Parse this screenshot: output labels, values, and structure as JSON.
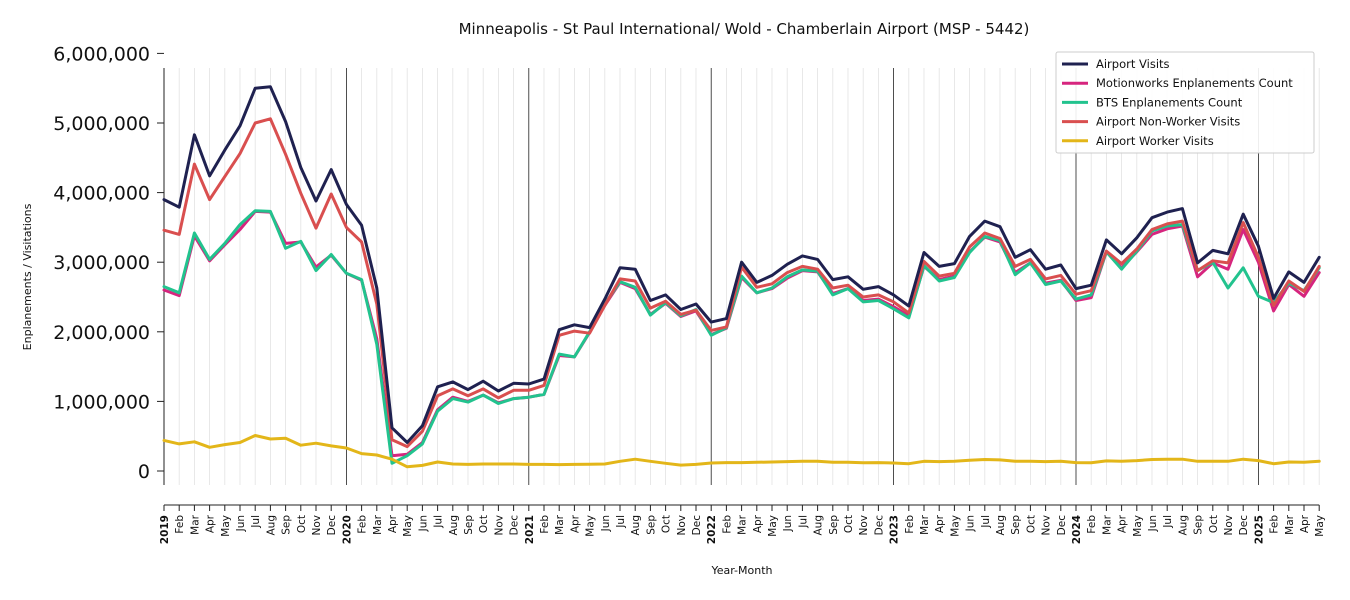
{
  "chart_data": {
    "type": "line",
    "title": "Minneapolis - St Paul International/ Wold - Chamberlain Airport (MSP - 5442)",
    "xlabel": "Year-Month",
    "ylabel": "Enplanements / Visitations",
    "ylim": [
      -200000,
      6000000
    ],
    "yticks": [
      0,
      1000000,
      2000000,
      3000000,
      4000000,
      5000000,
      6000000
    ],
    "ytick_labels": [
      "0",
      "1,000,000",
      "2,000,000",
      "3,000,000",
      "4,000,000",
      "5,000,000",
      "6,000,000"
    ],
    "grid": "vertical monthly gridlines, darker lines at each January",
    "legend_position": "top-right",
    "x": [
      "2019-01",
      "2019-02",
      "2019-03",
      "2019-04",
      "2019-05",
      "2019-06",
      "2019-07",
      "2019-08",
      "2019-09",
      "2019-10",
      "2019-11",
      "2019-12",
      "2020-01",
      "2020-02",
      "2020-03",
      "2020-04",
      "2020-05",
      "2020-06",
      "2020-07",
      "2020-08",
      "2020-09",
      "2020-10",
      "2020-11",
      "2020-12",
      "2021-01",
      "2021-02",
      "2021-03",
      "2021-04",
      "2021-05",
      "2021-06",
      "2021-07",
      "2021-08",
      "2021-09",
      "2021-10",
      "2021-11",
      "2021-12",
      "2022-01",
      "2022-02",
      "2022-03",
      "2022-04",
      "2022-05",
      "2022-06",
      "2022-07",
      "2022-08",
      "2022-09",
      "2022-10",
      "2022-11",
      "2022-12",
      "2023-01",
      "2023-02",
      "2023-03",
      "2023-04",
      "2023-05",
      "2023-06",
      "2023-07",
      "2023-08",
      "2023-09",
      "2023-10",
      "2023-11",
      "2023-12",
      "2024-01",
      "2024-02",
      "2024-03",
      "2024-04",
      "2024-05",
      "2024-06",
      "2024-07",
      "2024-08",
      "2024-09",
      "2024-10",
      "2024-11",
      "2024-12",
      "2025-01",
      "2025-02",
      "2025-03",
      "2025-04",
      "2025-05"
    ],
    "xtick_labels": [
      "2019",
      "Feb",
      "Mar",
      "Apr",
      "May",
      "Jun",
      "Jul",
      "Aug",
      "Sep",
      "Oct",
      "Nov",
      "Dec",
      "2020",
      "Feb",
      "Mar",
      "Apr",
      "May",
      "Jun",
      "Jul",
      "Aug",
      "Sep",
      "Oct",
      "Nov",
      "Dec",
      "2021",
      "Feb",
      "Mar",
      "Apr",
      "May",
      "Jun",
      "Jul",
      "Aug",
      "Sep",
      "Oct",
      "Nov",
      "Dec",
      "2022",
      "Feb",
      "Mar",
      "Apr",
      "May",
      "Jun",
      "Jul",
      "Aug",
      "Sep",
      "Oct",
      "Nov",
      "Dec",
      "2023",
      "Feb",
      "Mar",
      "Apr",
      "May",
      "Jun",
      "Jul",
      "Aug",
      "Sep",
      "Oct",
      "Nov",
      "Dec",
      "2024",
      "Feb",
      "Mar",
      "Apr",
      "May",
      "Jun",
      "Jul",
      "Aug",
      "Sep",
      "Oct",
      "Nov",
      "Dec",
      "2025",
      "Feb",
      "Mar",
      "Apr",
      "May"
    ],
    "series": [
      {
        "name": "Motionworks Enplanements Count",
        "color": "#d6257e",
        "values": [
          2600000,
          2520000,
          3380000,
          3020000,
          3250000,
          3470000,
          3730000,
          3720000,
          3270000,
          3290000,
          2930000,
          3100000,
          2840000,
          2740000,
          1900000,
          220000,
          240000,
          410000,
          880000,
          1060000,
          1000000,
          1090000,
          980000,
          1040000,
          1060000,
          1100000,
          1660000,
          1640000,
          1990000,
          2380000,
          2710000,
          2620000,
          2250000,
          2410000,
          2220000,
          2300000,
          1960000,
          2050000,
          2780000,
          2560000,
          2620000,
          2770000,
          2880000,
          2860000,
          2550000,
          2620000,
          2450000,
          2470000,
          2360000,
          2230000,
          2940000,
          2750000,
          2800000,
          3150000,
          3360000,
          3290000,
          2850000,
          2990000,
          2700000,
          2740000,
          2450000,
          2490000,
          3150000,
          2920000,
          3150000,
          3400000,
          3480000,
          3520000,
          2790000,
          2990000,
          2900000,
          3470000,
          3000000,
          2300000,
          2680000,
          2510000,
          2850000
        ]
      },
      {
        "name": "BTS Enplanements Count",
        "color": "#22c38e",
        "values": [
          2650000,
          2560000,
          3420000,
          3040000,
          3270000,
          3540000,
          3740000,
          3730000,
          3200000,
          3300000,
          2880000,
          3110000,
          2840000,
          2750000,
          1820000,
          110000,
          220000,
          390000,
          860000,
          1040000,
          990000,
          1090000,
          970000,
          1040000,
          1060000,
          1100000,
          1680000,
          1640000,
          2000000,
          2400000,
          2720000,
          2640000,
          2240000,
          2420000,
          2230000,
          2320000,
          1950000,
          2060000,
          2800000,
          2560000,
          2630000,
          2790000,
          2890000,
          2870000,
          2530000,
          2620000,
          2430000,
          2450000,
          2330000,
          2200000,
          2950000,
          2730000,
          2780000,
          3140000,
          3370000,
          3310000,
          2820000,
          2990000,
          2680000,
          2730000,
          2470000,
          2530000,
          3150000,
          2900000,
          3160000,
          3450000,
          3520000,
          3540000,
          2880000,
          3000000,
          2630000,
          2920000,
          2510000,
          2420000,
          2700000,
          2590000,
          2920000
        ]
      },
      {
        "name": "Airport Non-Worker Visits",
        "color": "#d94f4f",
        "values": [
          3460000,
          3400000,
          4410000,
          3900000,
          4230000,
          4560000,
          5000000,
          5060000,
          4550000,
          3990000,
          3490000,
          3980000,
          3500000,
          3290000,
          2400000,
          450000,
          350000,
          570000,
          1080000,
          1180000,
          1080000,
          1180000,
          1050000,
          1160000,
          1160000,
          1230000,
          1950000,
          2010000,
          1980000,
          2380000,
          2760000,
          2730000,
          2340000,
          2440000,
          2250000,
          2310000,
          2020000,
          2070000,
          2930000,
          2640000,
          2690000,
          2850000,
          2940000,
          2900000,
          2630000,
          2670000,
          2500000,
          2530000,
          2430000,
          2270000,
          3010000,
          2800000,
          2840000,
          3220000,
          3420000,
          3340000,
          2940000,
          3040000,
          2760000,
          2810000,
          2540000,
          2590000,
          3160000,
          2980000,
          3190000,
          3470000,
          3550000,
          3590000,
          2880000,
          3020000,
          2990000,
          3570000,
          3070000,
          2380000,
          2730000,
          2580000,
          2940000
        ]
      },
      {
        "name": "Airport Visits",
        "color": "#1f2150",
        "values": [
          3900000,
          3790000,
          4830000,
          4240000,
          4610000,
          4960000,
          5500000,
          5520000,
          5020000,
          4360000,
          3880000,
          4330000,
          3830000,
          3530000,
          2630000,
          620000,
          410000,
          650000,
          1210000,
          1280000,
          1170000,
          1290000,
          1150000,
          1260000,
          1250000,
          1320000,
          2030000,
          2100000,
          2060000,
          2470000,
          2920000,
          2900000,
          2450000,
          2530000,
          2320000,
          2400000,
          2140000,
          2190000,
          3000000,
          2710000,
          2810000,
          2970000,
          3090000,
          3040000,
          2750000,
          2790000,
          2610000,
          2650000,
          2530000,
          2370000,
          3140000,
          2940000,
          2980000,
          3370000,
          3590000,
          3510000,
          3070000,
          3180000,
          2900000,
          2960000,
          2620000,
          2670000,
          3320000,
          3120000,
          3350000,
          3640000,
          3720000,
          3770000,
          2990000,
          3170000,
          3120000,
          3690000,
          3230000,
          2480000,
          2860000,
          2710000,
          3070000
        ]
      },
      {
        "name": "Airport Worker Visits",
        "color": "#e3b619",
        "values": [
          440000,
          390000,
          420000,
          340000,
          380000,
          410000,
          510000,
          460000,
          470000,
          370000,
          400000,
          360000,
          330000,
          250000,
          230000,
          170000,
          60000,
          80000,
          130000,
          100000,
          95000,
          100000,
          100000,
          100000,
          95000,
          95000,
          92000,
          95000,
          98000,
          100000,
          140000,
          170000,
          140000,
          110000,
          85000,
          95000,
          115000,
          120000,
          120000,
          125000,
          130000,
          135000,
          140000,
          140000,
          125000,
          125000,
          118000,
          120000,
          115000,
          105000,
          140000,
          135000,
          140000,
          155000,
          165000,
          160000,
          140000,
          140000,
          135000,
          140000,
          120000,
          118000,
          145000,
          140000,
          150000,
          165000,
          170000,
          170000,
          140000,
          140000,
          140000,
          170000,
          150000,
          105000,
          130000,
          125000,
          140000
        ]
      }
    ],
    "legend": [
      {
        "name": "Airport Visits",
        "color": "#1f2150"
      },
      {
        "name": "Motionworks Enplanements Count",
        "color": "#d6257e"
      },
      {
        "name": "BTS Enplanements Count",
        "color": "#22c38e"
      },
      {
        "name": "Airport Non-Worker Visits",
        "color": "#d94f4f"
      },
      {
        "name": "Airport Worker Visits",
        "color": "#e3b619"
      }
    ]
  }
}
